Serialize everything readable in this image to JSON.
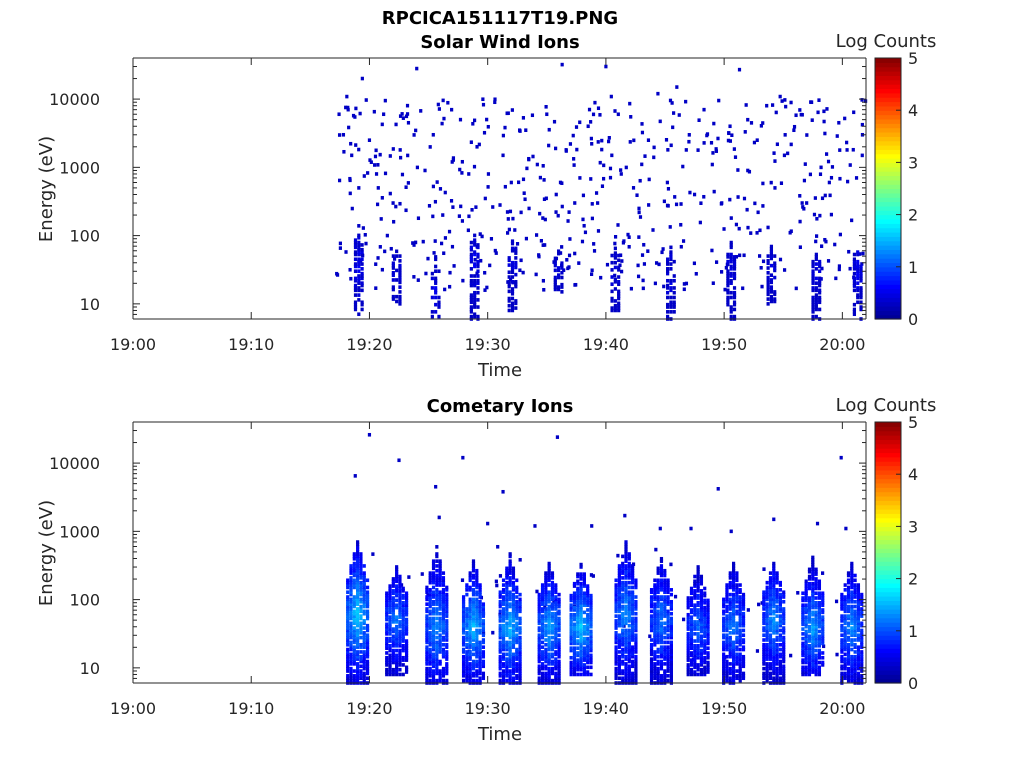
{
  "figure_title": "RPCICA151117T19.PNG",
  "colormap": [
    "#00008f",
    "#0000ff",
    "#0080ff",
    "#00ffff",
    "#80ff80",
    "#ffff00",
    "#ff8000",
    "#ff0000",
    "#800000"
  ],
  "colorbar": {
    "label": "Log Counts",
    "range": [
      0,
      5
    ],
    "ticks": [
      "0",
      "1",
      "2",
      "3",
      "4",
      "5"
    ]
  },
  "chart_data": [
    {
      "type": "heatmap",
      "title": "Solar Wind Ions",
      "xlabel": "Time",
      "ylabel": "Energy (eV)",
      "x_unit": "minutes after 19:00",
      "xlim": [
        0,
        62
      ],
      "xticks": [
        0,
        10,
        20,
        30,
        40,
        50,
        60
      ],
      "xtick_labels": [
        "19:00",
        "19:10",
        "19:20",
        "19:30",
        "19:40",
        "19:50",
        "20:00"
      ],
      "ylim": [
        6,
        40000
      ],
      "yscale": "log",
      "yticks": [
        10,
        100,
        1000,
        10000
      ],
      "ytick_labels": [
        "10",
        "100",
        "1000",
        "10000"
      ],
      "colorbar_label": "Log Counts",
      "data_start_min": 17.2,
      "data_end_min": 62,
      "sparse_points": [
        [
          17.8,
          3000,
          0.3
        ],
        [
          18.2,
          7000,
          0.3
        ],
        [
          18.5,
          1500,
          0.3
        ],
        [
          19.1,
          500,
          0.3
        ],
        [
          19.4,
          20000,
          0.3
        ],
        [
          20.0,
          2500,
          0.3
        ],
        [
          20.6,
          800,
          0.3
        ],
        [
          21.2,
          6000,
          0.3
        ],
        [
          22.0,
          300,
          0.3
        ],
        [
          22.6,
          1800,
          0.3
        ],
        [
          23.3,
          4500,
          0.3
        ],
        [
          24.0,
          28000,
          0.3
        ],
        [
          24.7,
          900,
          0.3
        ],
        [
          25.4,
          3000,
          0.3
        ],
        [
          26.2,
          200,
          0.3
        ],
        [
          27.0,
          1200,
          0.3
        ],
        [
          27.7,
          5000,
          0.3
        ],
        [
          28.4,
          800,
          0.3
        ],
        [
          29.1,
          2000,
          0.3
        ],
        [
          29.8,
          350,
          0.3
        ],
        [
          30.6,
          9000,
          0.3
        ],
        [
          31.3,
          1500,
          0.3
        ],
        [
          32.0,
          600,
          0.3
        ],
        [
          32.7,
          3500,
          0.3
        ],
        [
          33.5,
          250,
          0.3
        ],
        [
          34.2,
          1100,
          0.3
        ],
        [
          35.0,
          6000,
          0.3
        ],
        [
          35.8,
          400,
          0.3
        ],
        [
          36.3,
          32000,
          0.3
        ],
        [
          37.0,
          2200,
          0.3
        ],
        [
          37.8,
          700,
          0.3
        ],
        [
          38.5,
          4000,
          0.3
        ],
        [
          39.3,
          300,
          0.3
        ],
        [
          40.0,
          30000,
          0.3
        ],
        [
          40.5,
          1500,
          0.3
        ],
        [
          41.3,
          800,
          0.3
        ],
        [
          42.1,
          5500,
          0.3
        ],
        [
          42.8,
          250,
          0.3
        ],
        [
          43.6,
          2500,
          0.3
        ],
        [
          44.4,
          12000,
          0.3
        ],
        [
          45.2,
          600,
          0.3
        ],
        [
          46.0,
          15000,
          0.3
        ],
        [
          46.8,
          1800,
          0.3
        ],
        [
          47.5,
          400,
          0.3
        ],
        [
          48.3,
          7000,
          0.3
        ],
        [
          49.0,
          1100,
          0.3
        ],
        [
          49.8,
          300,
          0.3
        ],
        [
          50.5,
          4000,
          0.3
        ],
        [
          51.3,
          27000,
          0.3
        ],
        [
          52.0,
          900,
          0.3
        ],
        [
          52.8,
          2500,
          0.3
        ],
        [
          53.6,
          8000,
          0.3
        ],
        [
          54.3,
          500,
          0.3
        ],
        [
          55.1,
          1500,
          0.3
        ],
        [
          55.9,
          3500,
          0.3
        ],
        [
          56.6,
          300,
          0.3
        ],
        [
          57.4,
          9000,
          0.3
        ],
        [
          58.2,
          1000,
          0.3
        ],
        [
          58.9,
          600,
          0.3
        ],
        [
          59.7,
          4500,
          0.3
        ],
        [
          60.4,
          1800,
          0.3
        ],
        [
          61.2,
          700,
          0.3
        ],
        [
          61.7,
          3000,
          0.3
        ]
      ],
      "bursts": [
        {
          "t": 19.1,
          "emin": 6,
          "emax": 150,
          "peak_e": 40,
          "peak": 0.4
        },
        {
          "t": 22.3,
          "emin": 10,
          "emax": 80,
          "peak_e": 30,
          "peak": 0.3
        },
        {
          "t": 25.6,
          "emin": 6,
          "emax": 50,
          "peak_e": 15,
          "peak": 0.4
        },
        {
          "t": 28.9,
          "emin": 6,
          "emax": 120,
          "peak_e": 40,
          "peak": 0.4
        },
        {
          "t": 32.1,
          "emin": 8,
          "emax": 100,
          "peak_e": 35,
          "peak": 0.3
        },
        {
          "t": 36.0,
          "emin": 15,
          "emax": 60,
          "peak_e": 30,
          "peak": 0.3
        },
        {
          "t": 40.8,
          "emin": 8,
          "emax": 80,
          "peak_e": 25,
          "peak": 0.3
        },
        {
          "t": 45.5,
          "emin": 6,
          "emax": 70,
          "peak_e": 25,
          "peak": 0.3
        },
        {
          "t": 50.6,
          "emin": 6,
          "emax": 80,
          "peak_e": 30,
          "peak": 0.3
        },
        {
          "t": 54.0,
          "emin": 10,
          "emax": 70,
          "peak_e": 30,
          "peak": 0.3
        },
        {
          "t": 57.8,
          "emin": 6,
          "emax": 60,
          "peak_e": 25,
          "peak": 0.3
        },
        {
          "t": 61.3,
          "emin": 6,
          "emax": 80,
          "peak_e": 30,
          "peak": 0.4
        }
      ]
    },
    {
      "type": "heatmap",
      "title": "Cometary Ions",
      "xlabel": "Time",
      "ylabel": "Energy (eV)",
      "x_unit": "minutes after 19:00",
      "xlim": [
        0,
        62
      ],
      "xticks": [
        0,
        10,
        20,
        30,
        40,
        50,
        60
      ],
      "xtick_labels": [
        "19:00",
        "19:10",
        "19:20",
        "19:30",
        "19:40",
        "19:50",
        "20:00"
      ],
      "ylim": [
        6,
        40000
      ],
      "yscale": "log",
      "yticks": [
        10,
        100,
        1000,
        10000
      ],
      "ytick_labels": [
        "10",
        "100",
        "1000",
        "10000"
      ],
      "colorbar_label": "Log Counts",
      "data_start_min": 17.2,
      "data_end_min": 62,
      "sparse_points": [
        [
          18.8,
          6500,
          0.3
        ],
        [
          20.0,
          26000,
          0.3
        ],
        [
          22.5,
          11000,
          0.3
        ],
        [
          25.6,
          4500,
          0.3
        ],
        [
          25.9,
          1600,
          0.3
        ],
        [
          27.9,
          12000,
          0.3
        ],
        [
          30.0,
          1300,
          0.3
        ],
        [
          31.3,
          3800,
          0.3
        ],
        [
          34.0,
          1200,
          0.3
        ],
        [
          35.9,
          24000,
          0.3
        ],
        [
          41.6,
          1700,
          0.3
        ],
        [
          49.5,
          4200,
          0.3
        ],
        [
          54.2,
          1500,
          0.3
        ],
        [
          57.9,
          1300,
          0.3
        ],
        [
          59.9,
          12000,
          0.3
        ],
        [
          60.3,
          1100,
          0.3
        ],
        [
          38.8,
          1200,
          0.3
        ],
        [
          44.6,
          1100,
          0.3
        ],
        [
          47.2,
          1100,
          0.3
        ],
        [
          50.6,
          1000,
          0.3
        ]
      ],
      "bursts": [
        {
          "t": 19.0,
          "emin": 6,
          "emax": 700,
          "peak_e": 60,
          "peak": 1.5
        },
        {
          "t": 22.3,
          "emin": 8,
          "emax": 300,
          "peak_e": 50,
          "peak": 1.1
        },
        {
          "t": 25.7,
          "emin": 6,
          "emax": 600,
          "peak_e": 40,
          "peak": 1.2
        },
        {
          "t": 28.8,
          "emin": 6,
          "emax": 400,
          "peak_e": 40,
          "peak": 1.4
        },
        {
          "t": 31.9,
          "emin": 6,
          "emax": 450,
          "peak_e": 40,
          "peak": 1.4
        },
        {
          "t": 35.2,
          "emin": 6,
          "emax": 350,
          "peak_e": 40,
          "peak": 1.3
        },
        {
          "t": 37.9,
          "emin": 8,
          "emax": 350,
          "peak_e": 40,
          "peak": 1.5
        },
        {
          "t": 41.7,
          "emin": 6,
          "emax": 700,
          "peak_e": 60,
          "peak": 1.2
        },
        {
          "t": 44.7,
          "emin": 6,
          "emax": 400,
          "peak_e": 50,
          "peak": 1.1
        },
        {
          "t": 47.8,
          "emin": 8,
          "emax": 300,
          "peak_e": 40,
          "peak": 1.0
        },
        {
          "t": 50.8,
          "emin": 6,
          "emax": 350,
          "peak_e": 40,
          "peak": 1.1
        },
        {
          "t": 54.2,
          "emin": 6,
          "emax": 350,
          "peak_e": 50,
          "peak": 1.2
        },
        {
          "t": 57.5,
          "emin": 8,
          "emax": 400,
          "peak_e": 40,
          "peak": 1.3
        },
        {
          "t": 60.8,
          "emin": 6,
          "emax": 350,
          "peak_e": 40,
          "peak": 1.2
        }
      ]
    }
  ]
}
